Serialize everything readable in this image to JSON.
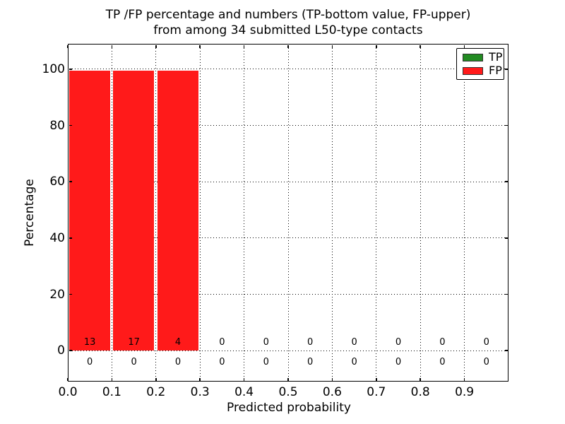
{
  "colors": {
    "background": "#ffffff",
    "text": "#000000",
    "grid": "#000000",
    "axis": "#000000",
    "tp": "#228b22",
    "fp": "#ff1a1a"
  },
  "chart_data": {
    "type": "bar",
    "title_line1": "TP /FP percentage and numbers (TP-bottom value, FP-upper)",
    "title_line2": "from among 34 submitted L50-type contacts",
    "xlabel": "Predicted probability",
    "ylabel": "Percentage",
    "xlim": [
      0.0,
      1.0
    ],
    "ylim": [
      -11,
      109
    ],
    "grid": true,
    "legend_position": "upper right",
    "xtick_values": [
      0.0,
      0.1,
      0.2,
      0.3,
      0.4,
      0.5,
      0.6,
      0.7,
      0.8,
      0.9
    ],
    "xtick_labels": [
      "0.0",
      "0.1",
      "0.2",
      "0.3",
      "0.4",
      "0.5",
      "0.6",
      "0.7",
      "0.8",
      "0.9"
    ],
    "ytick_values": [
      0,
      20,
      40,
      60,
      80,
      100
    ],
    "ytick_labels": [
      "0",
      "20",
      "40",
      "60",
      "80",
      "100"
    ],
    "bin_edges": [
      0.0,
      0.1,
      0.2,
      0.3,
      0.4,
      0.5,
      0.6,
      0.7,
      0.8,
      0.9,
      1.0
    ],
    "series": [
      {
        "name": "TP",
        "color": "#228b22",
        "percentages": [
          0,
          0,
          0,
          0,
          0,
          0,
          0,
          0,
          0,
          0
        ],
        "counts": [
          0,
          0,
          0,
          0,
          0,
          0,
          0,
          0,
          0,
          0
        ],
        "count_row": "bottom"
      },
      {
        "name": "FP",
        "color": "#ff1a1a",
        "percentages": [
          100,
          100,
          100,
          0,
          0,
          0,
          0,
          0,
          0,
          0
        ],
        "counts": [
          13,
          17,
          4,
          0,
          0,
          0,
          0,
          0,
          0,
          0
        ],
        "count_row": "upper"
      }
    ]
  }
}
